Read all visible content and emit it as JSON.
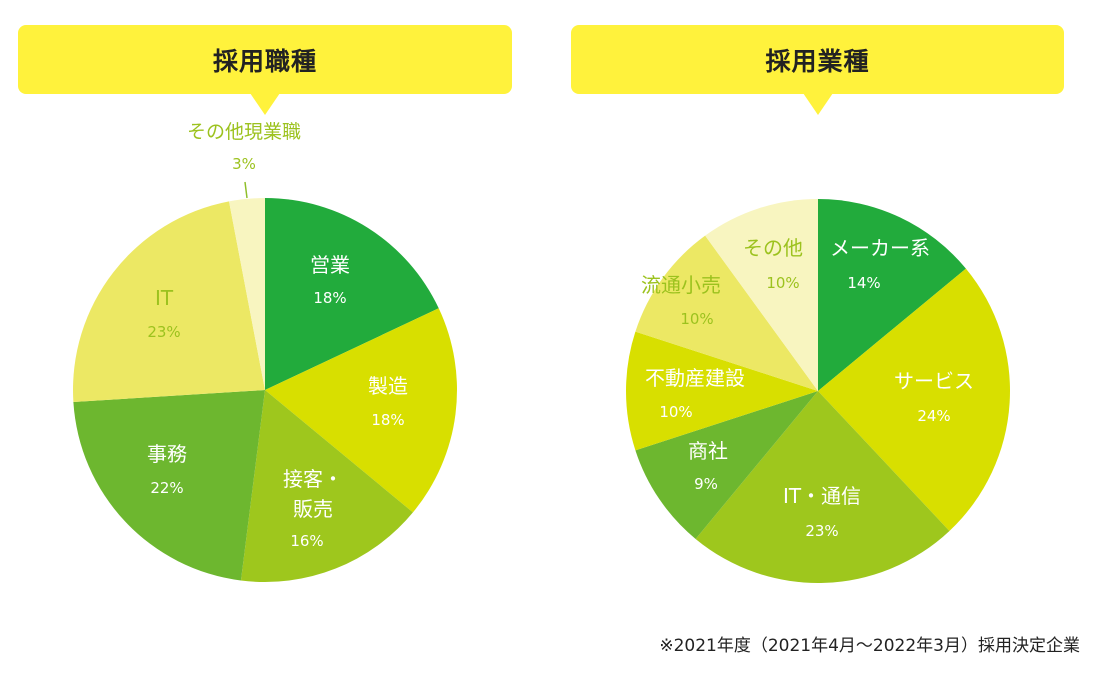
{
  "chart_data": [
    {
      "type": "pie",
      "title": "採用職種",
      "slices": [
        {
          "label": "営業",
          "value": 18,
          "pct": "18%",
          "color": "#22ab3c",
          "text_color": "#ffffff"
        },
        {
          "label": "製造",
          "value": 18,
          "pct": "18%",
          "color": "#d8df00",
          "text_color": "#ffffff"
        },
        {
          "label": "接客・販売",
          "value": 16,
          "pct": "16%",
          "color": "#9ec71d",
          "text_color": "#ffffff"
        },
        {
          "label": "事務",
          "value": 22,
          "pct": "22%",
          "color": "#6db72f",
          "text_color": "#ffffff"
        },
        {
          "label": "IT",
          "value": 23,
          "pct": "23%",
          "color": "#ece864",
          "text_color": "#9cc21e"
        },
        {
          "label": "その他現業職",
          "value": 3,
          "pct": "3%",
          "color": "#f8f5c0",
          "text_color": "#9cc21e"
        }
      ]
    },
    {
      "type": "pie",
      "title": "採用業種",
      "slices": [
        {
          "label": "メーカー系",
          "value": 14,
          "pct": "14%",
          "color": "#22ab3c",
          "text_color": "#ffffff"
        },
        {
          "label": "サービス",
          "value": 24,
          "pct": "24%",
          "color": "#d8df00",
          "text_color": "#ffffff"
        },
        {
          "label": "IT・通信",
          "value": 23,
          "pct": "23%",
          "color": "#9ec71d",
          "text_color": "#ffffff"
        },
        {
          "label": "商社",
          "value": 9,
          "pct": "9%",
          "color": "#6db72f",
          "text_color": "#ffffff"
        },
        {
          "label": "不動産建設",
          "value": 10,
          "pct": "10%",
          "color": "#d8df00",
          "text_color": "#ffffff"
        },
        {
          "label": "流通小売",
          "value": 10,
          "pct": "10%",
          "color": "#ece864",
          "text_color": "#9cc21e"
        },
        {
          "label": "その他",
          "value": 10,
          "pct": "10%",
          "color": "#f8f5c0",
          "text_color": "#9cc21e"
        }
      ]
    }
  ],
  "footnote": "※2021年度（2021年4月～2022年3月）採用決定企業"
}
